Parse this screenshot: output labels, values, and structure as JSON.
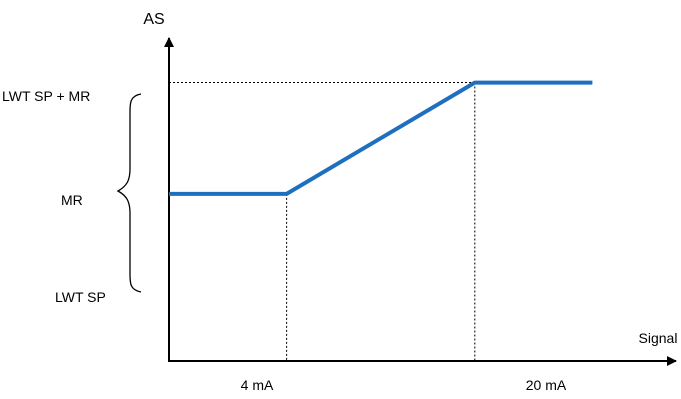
{
  "chart_data": {
    "type": "line",
    "ylabel": "AS",
    "xlabel": "Signal",
    "x_tick_labels": [
      "4 mA",
      "20 mA"
    ],
    "y_tick_labels": [
      "LWT SP + MR",
      "LWT SP"
    ],
    "brace_label": "MR",
    "xlim": [
      -6,
      36
    ],
    "ylim": [
      -1.5,
      1.4
    ],
    "series": [
      {
        "x": [
          -6,
          4,
          20,
          30
        ],
        "y": [
          0,
          0,
          1,
          1
        ]
      }
    ],
    "colors": {
      "line": "#1f6fbf",
      "axis": "#000000",
      "guide": "#000000"
    },
    "grid": false,
    "legend": "none"
  }
}
